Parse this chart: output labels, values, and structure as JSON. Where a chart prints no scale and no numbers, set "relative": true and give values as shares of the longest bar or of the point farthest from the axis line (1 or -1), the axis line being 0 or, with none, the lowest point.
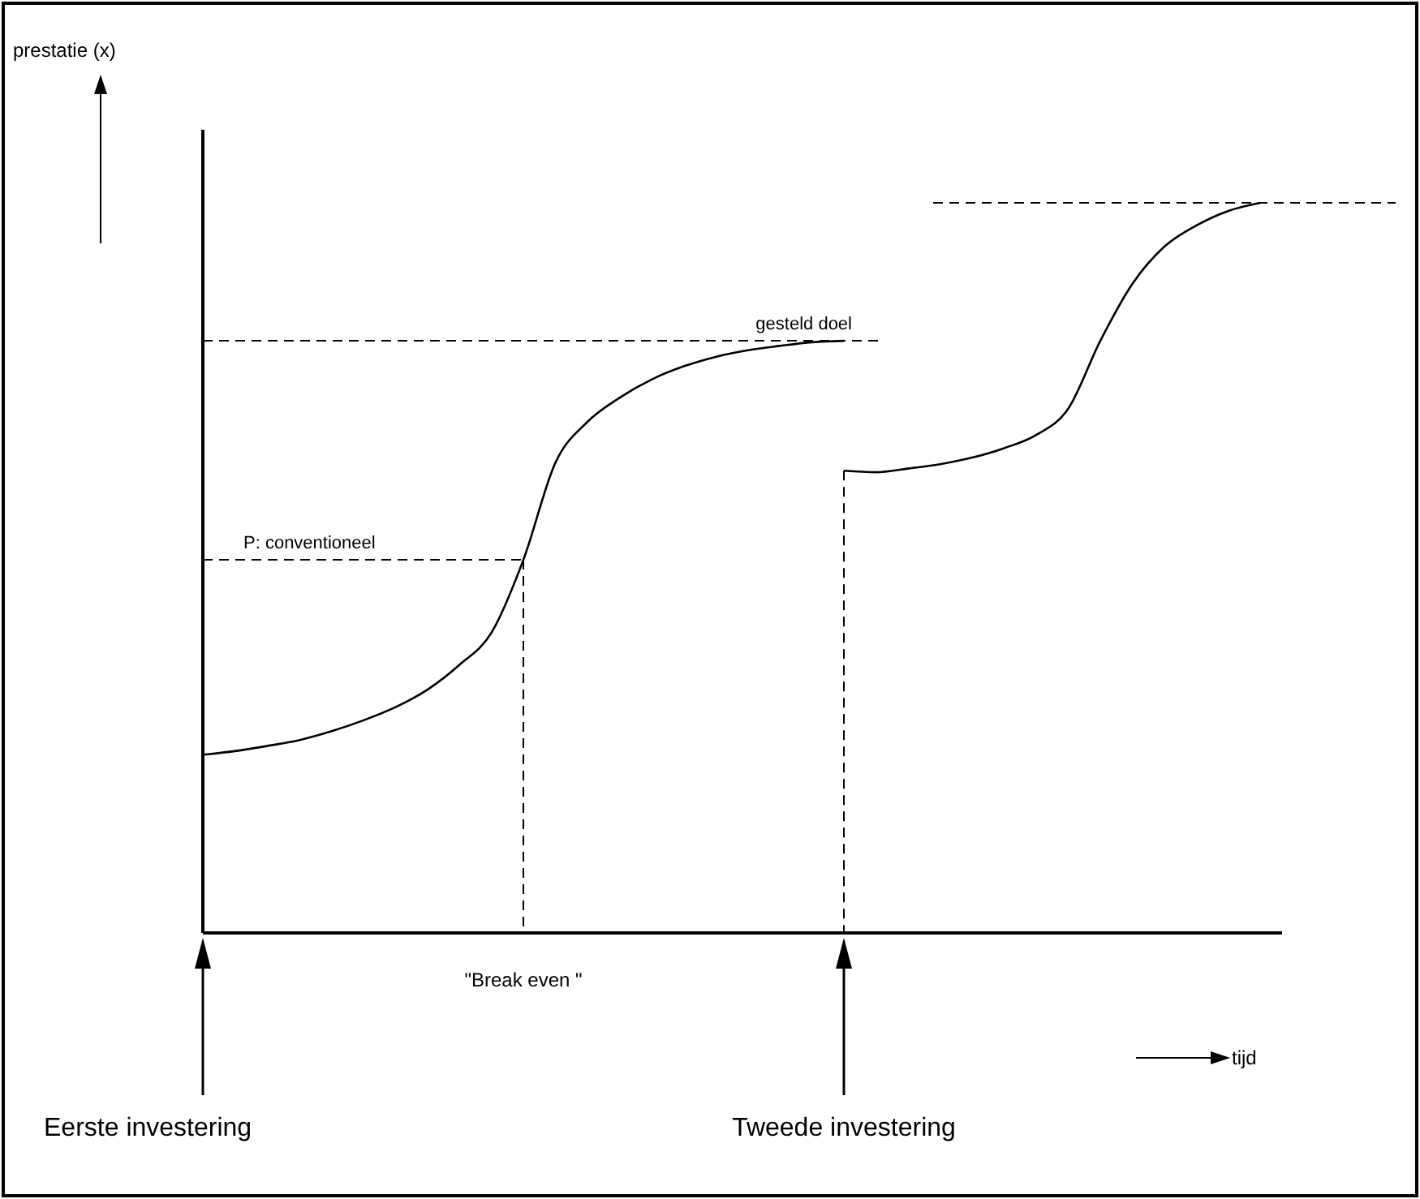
{
  "chart_data": {
    "type": "line",
    "relative": true,
    "categories": [
      null,
      null,
      null,
      null,
      null,
      null,
      null,
      null,
      null,
      null,
      null,
      null,
      null,
      null,
      null,
      null,
      null,
      null,
      null,
      null,
      null,
      null,
      null,
      null,
      null,
      null,
      null,
      null,
      null,
      null,
      null,
      null,
      null,
      null
    ],
    "series": [
      {
        "color": "#000000",
        "values": [
          0.244,
          0.249,
          0.256,
          0.264,
          0.276,
          0.291,
          0.309,
          0.333,
          0.367,
          0.411,
          0.511,
          0.644,
          0.7,
          0.733,
          0.758,
          0.776,
          0.789,
          0.798,
          0.804,
          0.809,
          0.811,
          null,
          null,
          null,
          null,
          null,
          null,
          null,
          null,
          null,
          null,
          null,
          null,
          null
        ]
      },
      {
        "color": "#000000",
        "values": [
          null,
          null,
          null,
          null,
          null,
          null,
          null,
          null,
          null,
          null,
          null,
          null,
          null,
          null,
          null,
          null,
          null,
          null,
          null,
          null,
          0.633,
          0.631,
          0.636,
          0.642,
          0.651,
          0.664,
          0.682,
          0.718,
          0.811,
          0.889,
          0.94,
          0.969,
          0.989,
          1
        ]
      }
    ],
    "ref_lines": [
      {
        "axis": "y",
        "value": 0.811,
        "label": "gesteld doel",
        "line_style": "dashed"
      },
      {
        "axis": "y",
        "value": 0.511,
        "label": "P: conventioneel",
        "line_style": "dashed"
      },
      {
        "axis": "y",
        "value": 1,
        "label": null,
        "line_style": "dashed"
      }
    ],
    "annotations": [
      "prestatie  (x)",
      "tijd",
      "\"Break even \"",
      "Eerste investering",
      "Tweede investering"
    ]
  }
}
